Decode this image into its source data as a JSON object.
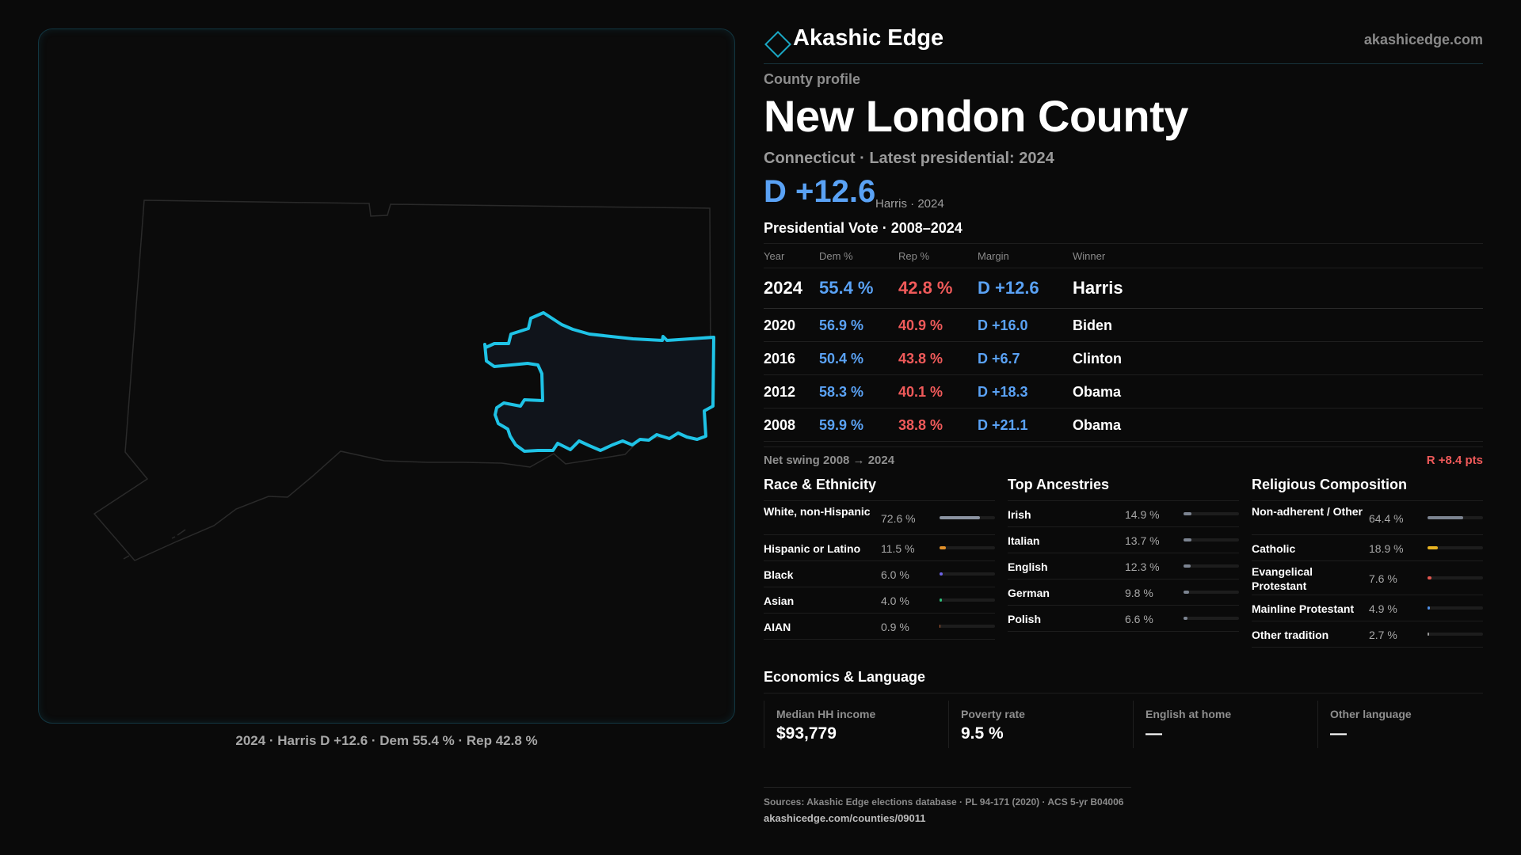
{
  "map": {
    "caption": "2024 · Harris D +12.6 · Dem 55.4 % · Rep 42.8 %",
    "outline_color": "#2a2a2a",
    "highlight_color": "#1fc3e6"
  },
  "brand": {
    "name": "Akashic Edge",
    "url": "akashicedge.com"
  },
  "profile": {
    "eyebrow": "County profile",
    "title": "New London County",
    "subtitle": "Connecticut · Latest presidential: 2024",
    "margin": "D +12.6",
    "margin_note": "Harris · 2024"
  },
  "vote": {
    "heading": "Presidential Vote · 2008–2024",
    "headers": {
      "year": "Year",
      "dem": "Dem %",
      "rep": "Rep %",
      "margin": "Margin",
      "winner": "Winner"
    },
    "rows": [
      {
        "year": "2024",
        "dem": "55.4 %",
        "rep": "42.8 %",
        "margin": "D +12.6",
        "winner": "Harris"
      },
      {
        "year": "2020",
        "dem": "56.9 %",
        "rep": "40.9 %",
        "margin": "D +16.0",
        "winner": "Biden"
      },
      {
        "year": "2016",
        "dem": "50.4 %",
        "rep": "43.8 %",
        "margin": "D +6.7",
        "winner": "Clinton"
      },
      {
        "year": "2012",
        "dem": "58.3 %",
        "rep": "40.1 %",
        "margin": "D +18.3",
        "winner": "Obama"
      },
      {
        "year": "2008",
        "dem": "59.9 %",
        "rep": "38.8 %",
        "margin": "D +21.1",
        "winner": "Obama"
      }
    ],
    "swing_label": "Net swing 2008 → 2024",
    "swing_value": "R +8.4 pts"
  },
  "race": {
    "title": "Race & Ethnicity",
    "items": [
      {
        "label": "White, non-Hispanic",
        "value": "72.6 %",
        "pct": 72.6,
        "color": "#8b93a1"
      },
      {
        "label": "Hispanic or Latino",
        "value": "11.5 %",
        "pct": 11.5,
        "color": "#e0902a"
      },
      {
        "label": "Black",
        "value": "6.0 %",
        "pct": 6.0,
        "color": "#6d63e6"
      },
      {
        "label": "Asian",
        "value": "4.0 %",
        "pct": 4.0,
        "color": "#2fbf7a"
      },
      {
        "label": "AIAN",
        "value": "0.9 %",
        "pct": 0.9,
        "color": "#c0643a"
      }
    ]
  },
  "ancestry": {
    "title": "Top Ancestries",
    "items": [
      {
        "label": "Irish",
        "value": "14.9 %",
        "pct": 14.9,
        "color": "#7c8491"
      },
      {
        "label": "Italian",
        "value": "13.7 %",
        "pct": 13.7,
        "color": "#7c8491"
      },
      {
        "label": "English",
        "value": "12.3 %",
        "pct": 12.3,
        "color": "#7c8491"
      },
      {
        "label": "German",
        "value": "9.8 %",
        "pct": 9.8,
        "color": "#7c8491"
      },
      {
        "label": "Polish",
        "value": "6.6 %",
        "pct": 6.6,
        "color": "#7c8491"
      }
    ]
  },
  "religion": {
    "title": "Religious Composition",
    "items": [
      {
        "label": "Non-adherent / Other",
        "value": "64.4 %",
        "pct": 64.4,
        "color": "#7c8491"
      },
      {
        "label": "Catholic",
        "value": "18.9 %",
        "pct": 18.9,
        "color": "#e7b321"
      },
      {
        "label": "Evangelical Protestant",
        "value": "7.6 %",
        "pct": 7.6,
        "color": "#e2564f"
      },
      {
        "label": "Mainline Protestant",
        "value": "4.9 %",
        "pct": 4.9,
        "color": "#4f8fe6"
      },
      {
        "label": "Other tradition",
        "value": "2.7 %",
        "pct": 2.7,
        "color": "#9a9a9a"
      }
    ]
  },
  "economics": {
    "title": "Economics & Language",
    "cells": [
      {
        "label": "Median HH income",
        "value": "$93,779"
      },
      {
        "label": "Poverty rate",
        "value": "9.5 %"
      },
      {
        "label": "English at home",
        "value": "—"
      },
      {
        "label": "Other language",
        "value": "—"
      }
    ]
  },
  "sources": {
    "line": "Sources: Akashic Edge elections database · PL 94-171 (2020) · ACS 5-yr B04006",
    "url": "akashicedge.com/counties/09011"
  }
}
